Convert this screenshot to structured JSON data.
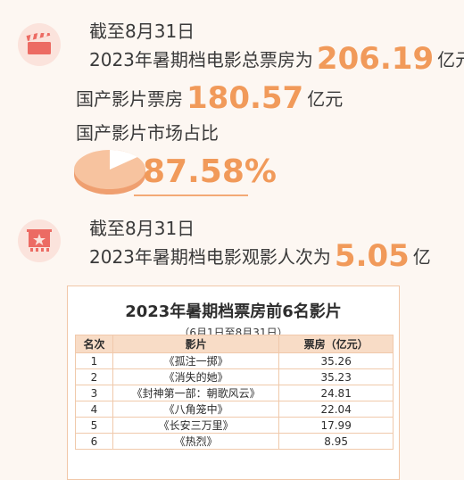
{
  "section1": {
    "icon": "clapperboard-icon",
    "date_line": "截至8月31日",
    "total_prefix": "2023年暑期档电影总票房为",
    "total_value": "206.19",
    "total_unit": "亿元",
    "domestic_prefix": "国产影片票房",
    "domestic_value": "180.57",
    "domestic_unit": "亿元",
    "share_label": "国产影片市场占比",
    "share_value": "87.58%",
    "share_fraction": 0.8758
  },
  "section2": {
    "icon": "movie-star-icon",
    "date_line": "截至8月31日",
    "attendance_prefix": "2023年暑期档电影观影人次为",
    "attendance_value": "5.05",
    "attendance_unit": "亿"
  },
  "table": {
    "title": "2023年暑期档票房前6名影片",
    "subtitle": "（6月1日至8月31日）",
    "headers": [
      "名次",
      "影片",
      "票房（亿元）"
    ],
    "rows": [
      {
        "rank": "1",
        "film": "《孤注一掷》",
        "box": "35.26"
      },
      {
        "rank": "2",
        "film": "《消失的她》",
        "box": "35.23"
      },
      {
        "rank": "3",
        "film": "《封神第一部：朝歌风云》",
        "box": "24.81"
      },
      {
        "rank": "4",
        "film": "《八角笼中》",
        "box": "22.04"
      },
      {
        "rank": "5",
        "film": "《长安三万里》",
        "box": "17.99"
      },
      {
        "rank": "6",
        "film": "《热烈》",
        "box": "8.95"
      }
    ]
  },
  "colors": {
    "accent": "#f19a5a",
    "icon_red": "#ec6b63",
    "icon_bg": "#fbe3dc",
    "header_bg": "#f8dcc6",
    "border": "#f0c9ab"
  }
}
